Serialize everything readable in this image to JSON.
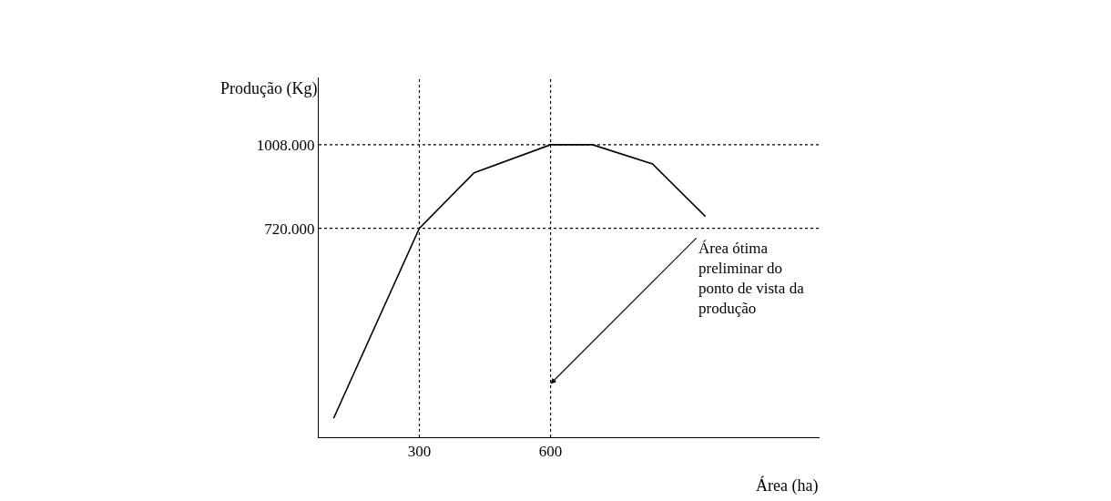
{
  "chart_data": {
    "type": "line",
    "xlabel": "Área (ha)",
    "ylabel": "Produção (Kg)",
    "x": [
      104,
      300,
      425,
      600,
      696,
      833,
      954
    ],
    "series": [
      {
        "color": "#000000",
        "values": [
          65,
          720,
          911,
          1008,
          1008,
          942,
          761
        ]
      }
    ],
    "xlim": [
      70,
      1215
    ],
    "ylim": [
      0,
      1240
    ],
    "xticks": [
      300,
      600
    ],
    "yticks": [
      {
        "value": 720,
        "label": "720.000"
      },
      {
        "value": 1008,
        "label": "1008.000"
      }
    ],
    "ref_lines": [
      {
        "axis": "y",
        "value": 720,
        "color": "#000000",
        "line_style": "dotted"
      },
      {
        "axis": "y",
        "value": 1008,
        "color": "#000000",
        "line_style": "dotted"
      },
      {
        "axis": "x",
        "value": 300,
        "color": "#000000",
        "line_style": "dotted"
      },
      {
        "axis": "x",
        "value": 600,
        "color": "#000000",
        "line_style": "dotted"
      }
    ],
    "annotations": [
      {
        "text": "Área ótima preliminar do ponto de vista da produção",
        "x": 600,
        "y": 184
      }
    ],
    "marker": "none",
    "line_style": "solid"
  }
}
